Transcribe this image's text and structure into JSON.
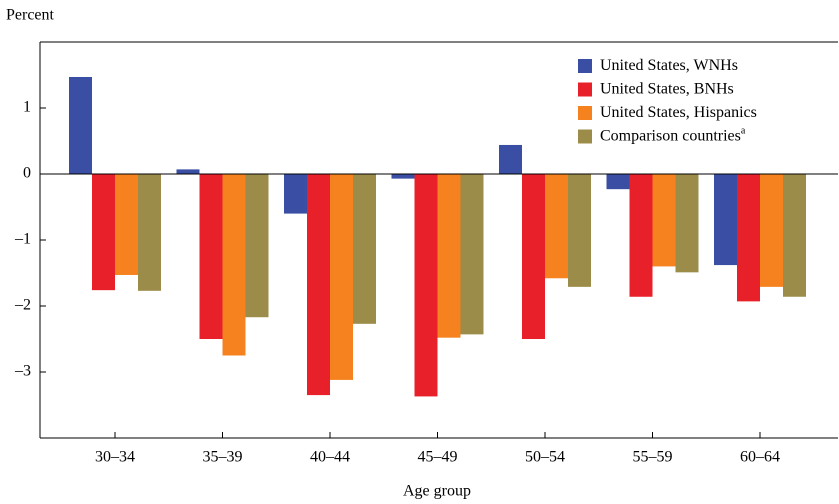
{
  "chart_data": {
    "type": "bar",
    "y_axis_label": "Percent",
    "x_axis_label": "Age group",
    "categories": [
      "30–34",
      "35–39",
      "40–44",
      "45–49",
      "50–54",
      "55–59",
      "60–64"
    ],
    "series": [
      {
        "name": "United States, WNHs",
        "color": "#3a4fa3",
        "values": [
          1.47,
          0.07,
          -0.6,
          -0.07,
          0.44,
          -0.23,
          -1.38
        ]
      },
      {
        "name": "United States, BNHs",
        "color": "#e8202a",
        "values": [
          -1.76,
          -2.5,
          -3.35,
          -3.37,
          -2.5,
          -1.86,
          -1.93
        ]
      },
      {
        "name": "United States, Hispanics",
        "color": "#f5821f",
        "values": [
          -1.53,
          -2.75,
          -3.12,
          -2.48,
          -1.58,
          -1.4,
          -1.71
        ]
      },
      {
        "name": "Comparison countries",
        "name_superscript": "a",
        "color": "#9c8c4a",
        "values": [
          -1.77,
          -2.17,
          -2.27,
          -2.43,
          -1.71,
          -1.49,
          -1.86
        ]
      }
    ],
    "ylim": [
      -4,
      2
    ],
    "yticks": [
      {
        "value": -3,
        "label": "–3"
      },
      {
        "value": -2,
        "label": "–2"
      },
      {
        "value": -1,
        "label": "–1"
      },
      0,
      1
    ],
    "legend": "top-right"
  }
}
